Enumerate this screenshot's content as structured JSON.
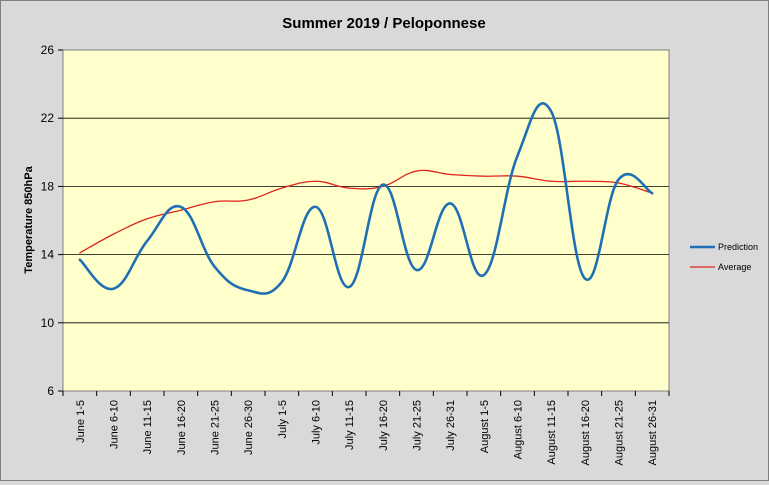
{
  "chart_data": {
    "type": "line",
    "title": "Summer 2019 / Peloponnese",
    "xlabel": "",
    "ylabel": "Temperature 850hPa",
    "ylim": [
      6,
      26
    ],
    "yticks": [
      6,
      10,
      14,
      18,
      22,
      26
    ],
    "grid": true,
    "legend_position": "right",
    "categories": [
      "June 1-5",
      "June 6-10",
      "June 11-15",
      "June 16-20",
      "June 21-25",
      "June 26-30",
      "July 1-5",
      "July 6-10",
      "July 11-15",
      "July 16-20",
      "July 21-25",
      "July 26-31",
      "August 1-5",
      "August 6-10",
      "August 11-15",
      "August 16-20",
      "August 21-25",
      "August 26-31"
    ],
    "series": [
      {
        "name": "Prediction",
        "color": "#1f6fb4",
        "values": [
          13.7,
          12.0,
          14.8,
          16.8,
          13.3,
          11.9,
          12.4,
          16.8,
          12.1,
          18.1,
          13.1,
          17.0,
          12.8,
          19.8,
          22.4,
          12.6,
          18.4,
          17.6
        ]
      },
      {
        "name": "Average",
        "color": "#e0241b",
        "values": [
          14.1,
          15.2,
          16.1,
          16.6,
          17.1,
          17.2,
          17.9,
          18.3,
          17.9,
          18.0,
          18.9,
          18.7,
          18.6,
          18.6,
          18.3,
          18.3,
          18.2,
          17.6
        ]
      }
    ]
  }
}
